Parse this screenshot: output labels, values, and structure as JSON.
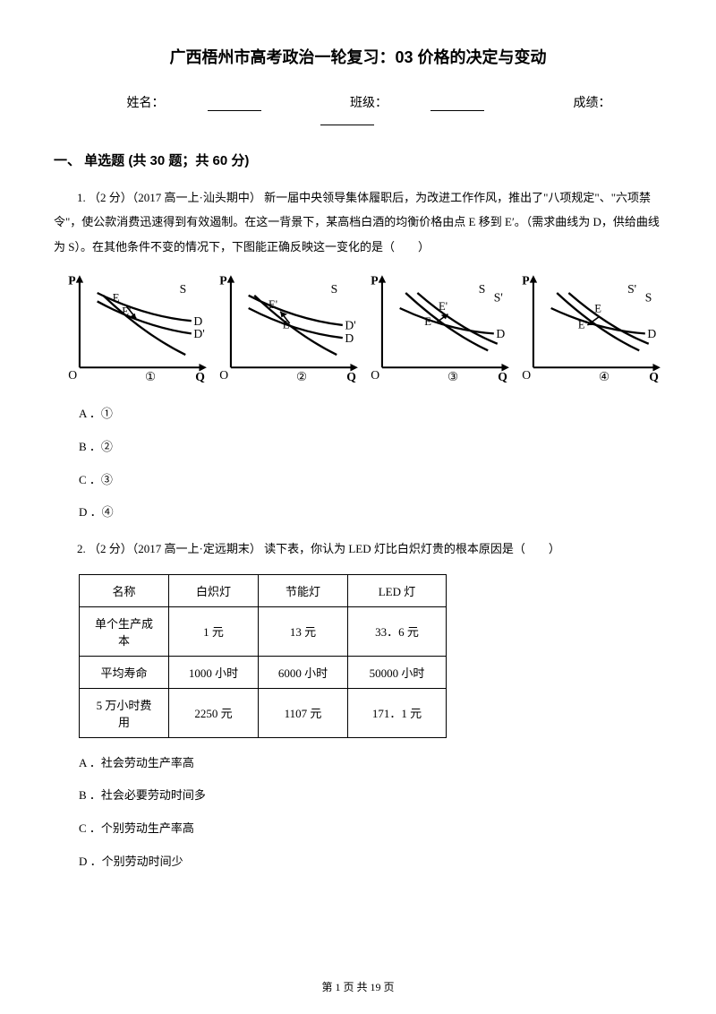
{
  "title": "广西梧州市高考政治一轮复习：03 价格的决定与变动",
  "info": {
    "name_label": "姓名：",
    "class_label": "班级：",
    "score_label": "成绩："
  },
  "section": {
    "header": "一、 单选题 (共 30 题；共 60 分)"
  },
  "q1": {
    "text": "1.  （2 分）（2017 高一上·汕头期中） 新一届中央领导集体履职后，为改进工作作风，推出了\"八项规定\"、\"六项禁令\"，使公款消费迅速得到有效遏制。在这一背景下，某高档白酒的均衡价格由点 E 移到 E′。（需求曲线为 D，供给曲线为 S）。在其他条件不变的情况下，下图能正确反映这一变化的是（　　）",
    "options": {
      "a": "A ．①",
      "b": "B ．②",
      "c": "C ．③",
      "d": "D ．④"
    }
  },
  "charts": {
    "axis_color": "#000000",
    "curve_color": "#000000",
    "curve_width": 2.2,
    "axis_width": 2,
    "font_size": 13,
    "background_color": "#ffffff",
    "panels": [
      {
        "id": "①",
        "type": "both_shift_up",
        "D": [
          [
            15,
            88
          ],
          [
            95,
            55
          ]
        ],
        "Dp": [
          [
            15,
            78
          ],
          [
            95,
            40
          ]
        ],
        "S": [
          [
            20,
            85
          ],
          [
            90,
            15
          ]
        ],
        "E": [
          44,
          72
        ],
        "Ep": [
          52,
          56
        ],
        "arrow": "up"
      },
      {
        "id": "②",
        "type": "D_shift_down",
        "D": [
          [
            15,
            70
          ],
          [
            95,
            35
          ]
        ],
        "Dp": [
          [
            15,
            85
          ],
          [
            95,
            50
          ]
        ],
        "S": [
          [
            20,
            85
          ],
          [
            90,
            15
          ]
        ],
        "E": [
          52,
          52
        ],
        "Ep": [
          44,
          68
        ],
        "arrow": "down"
      },
      {
        "id": "③",
        "type": "S_shift_right",
        "S": [
          [
            20,
            88
          ],
          [
            90,
            20
          ]
        ],
        "Sp": [
          [
            30,
            88
          ],
          [
            98,
            28
          ]
        ],
        "D": [
          [
            15,
            70
          ],
          [
            95,
            40
          ]
        ],
        "E": [
          48,
          55
        ],
        "Ep": [
          58,
          64
        ],
        "arrow": "down"
      },
      {
        "id": "④",
        "type": "S_shift_left",
        "S": [
          [
            30,
            88
          ],
          [
            98,
            28
          ]
        ],
        "Sp": [
          [
            20,
            88
          ],
          [
            90,
            20
          ]
        ],
        "D": [
          [
            15,
            70
          ],
          [
            95,
            40
          ]
        ],
        "E": [
          58,
          60
        ],
        "Ep": [
          48,
          50
        ],
        "arrow": "up"
      }
    ]
  },
  "q2": {
    "text": "2.  （2 分）（2017 高一上·定远期末） 读下表，你认为 LED 灯比白炽灯贵的根本原因是（　　）",
    "options": {
      "a": "A ．社会劳动生产率高",
      "b": "B ．社会必要劳动时间多",
      "c": "C ．个别劳动生产率高",
      "d": "D ．个别劳动时间少"
    }
  },
  "table": {
    "columns": [
      "名称",
      "白炽灯",
      "节能灯",
      "LED 灯"
    ],
    "rows": [
      [
        "单个生产成本",
        "1 元",
        "13 元",
        "33．6 元"
      ],
      [
        "平均寿命",
        "1000 小时",
        "6000 小时",
        "50000 小时"
      ],
      [
        "5 万小时费用",
        "2250 元",
        "1107 元",
        "171．1 元"
      ]
    ],
    "col_widths": [
      "100px",
      "100px",
      "100px",
      "110px"
    ]
  },
  "footer": {
    "text": "第 1 页 共 19 页"
  }
}
